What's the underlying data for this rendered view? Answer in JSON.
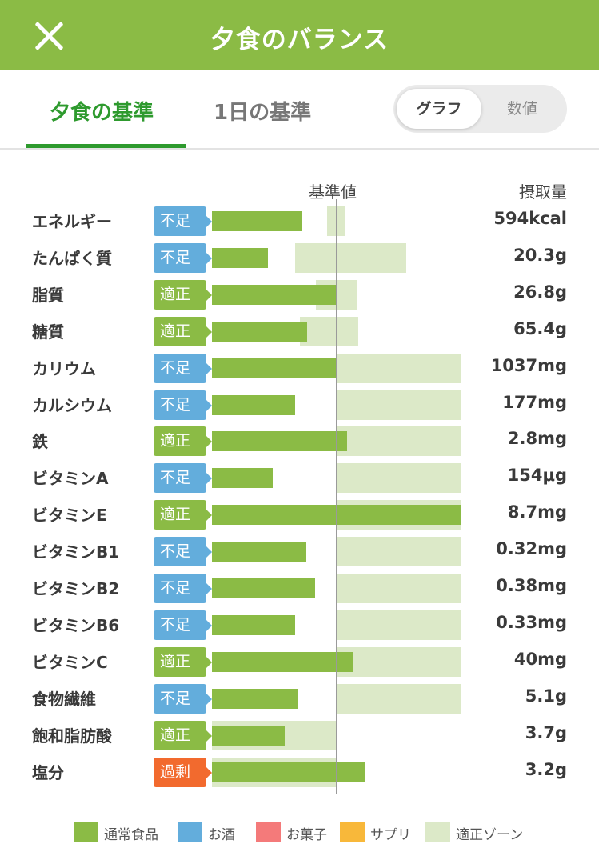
{
  "header": {
    "title": "夕食のバランス",
    "close_icon": "close-icon"
  },
  "tabs": [
    {
      "label": "夕食の基準",
      "active": true
    },
    {
      "label": "1日の基準",
      "active": false
    }
  ],
  "view_toggle": {
    "graph_label": "グラフ",
    "values_label": "数値",
    "selected": "グラフ"
  },
  "columns": {
    "standard": "基準値",
    "intake": "摂取量"
  },
  "colors": {
    "header": "#8bbb45",
    "food": "#8bbb45",
    "zone": "#dce9c8",
    "lack": "#63addc",
    "ok": "#8bbb45",
    "over": "#f26a2e",
    "tab_active": "#2e9a2e"
  },
  "chart_data": {
    "type": "bar",
    "reference_label": "基準値",
    "value_unit": "percent of standard",
    "rows": [
      {
        "name": "エネルギー",
        "status": "不足",
        "status_type": "lack",
        "value": "594kcal",
        "bar_pct": 73,
        "zone_pct": [
          93,
          108
        ]
      },
      {
        "name": "たんぱく質",
        "status": "不足",
        "status_type": "lack",
        "value": "20.3g",
        "bar_pct": 45,
        "zone_pct": [
          67,
          157
        ]
      },
      {
        "name": "脂質",
        "status": "適正",
        "status_type": "ok",
        "value": "26.8g",
        "bar_pct": 100,
        "zone_pct": [
          84,
          117
        ]
      },
      {
        "name": "糖質",
        "status": "適正",
        "status_type": "ok",
        "value": "65.4g",
        "bar_pct": 77,
        "zone_pct": [
          71,
          118
        ]
      },
      {
        "name": "カリウム",
        "status": "不足",
        "status_type": "lack",
        "value": "1037mg",
        "bar_pct": 100,
        "zone_pct": [
          100,
          201
        ]
      },
      {
        "name": "カルシウム",
        "status": "不足",
        "status_type": "lack",
        "value": "177mg",
        "bar_pct": 67,
        "zone_pct": [
          100,
          201
        ]
      },
      {
        "name": "鉄",
        "status": "適正",
        "status_type": "ok",
        "value": "2.8mg",
        "bar_pct": 109,
        "zone_pct": [
          100,
          201
        ]
      },
      {
        "name": "ビタミンA",
        "status": "不足",
        "status_type": "lack",
        "value": "154μg",
        "bar_pct": 49,
        "zone_pct": [
          100,
          201
        ]
      },
      {
        "name": "ビタミンE",
        "status": "適正",
        "status_type": "ok",
        "value": "8.7mg",
        "bar_pct": 201,
        "zone_pct": [
          100,
          201
        ]
      },
      {
        "name": "ビタミンB1",
        "status": "不足",
        "status_type": "lack",
        "value": "0.32mg",
        "bar_pct": 76,
        "zone_pct": [
          100,
          201
        ]
      },
      {
        "name": "ビタミンB2",
        "status": "不足",
        "status_type": "lack",
        "value": "0.38mg",
        "bar_pct": 83,
        "zone_pct": [
          100,
          201
        ]
      },
      {
        "name": "ビタミンB6",
        "status": "不足",
        "status_type": "lack",
        "value": "0.33mg",
        "bar_pct": 67,
        "zone_pct": [
          100,
          201
        ]
      },
      {
        "name": "ビタミンC",
        "status": "適正",
        "status_type": "ok",
        "value": "40mg",
        "bar_pct": 114,
        "zone_pct": [
          100,
          201
        ]
      },
      {
        "name": "食物繊維",
        "status": "不足",
        "status_type": "lack",
        "value": "5.1g",
        "bar_pct": 69,
        "zone_pct": [
          100,
          201
        ]
      },
      {
        "name": "飽和脂肪酸",
        "status": "適正",
        "status_type": "ok",
        "value": "3.7g",
        "bar_pct": 59,
        "zone_pct": [
          0,
          100
        ]
      },
      {
        "name": "塩分",
        "status": "過剰",
        "status_type": "over",
        "value": "3.2g",
        "bar_pct": 123,
        "zone_pct": [
          0,
          100
        ]
      }
    ]
  },
  "legend": [
    {
      "label": "通常食品",
      "color": "#8bbb45"
    },
    {
      "label": "お酒",
      "color": "#63addc"
    },
    {
      "label": "お菓子",
      "color": "#f47a7a"
    },
    {
      "label": "サプリ",
      "color": "#f8b83a"
    },
    {
      "label": "適正ゾーン",
      "color": "#dce9c8"
    }
  ]
}
